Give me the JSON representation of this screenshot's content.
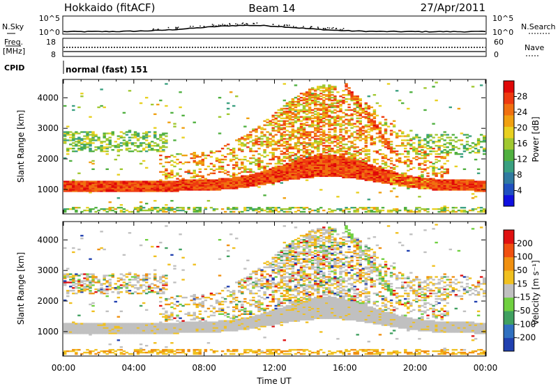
{
  "header": {
    "station": "Hokkaido (fitACF)",
    "beam": "Beam 14",
    "date": "27/Apr/2011"
  },
  "x_axis": {
    "ticks": [
      "00:00",
      "04:00",
      "08:00",
      "12:00",
      "16:00",
      "20:00",
      "00:00"
    ],
    "label": "Time UT"
  },
  "top_panels": {
    "noise": {
      "left_label": "N.Sky",
      "right_label": "N.Search",
      "left_ticks": [
        "10^5",
        "10^0"
      ],
      "right_ticks": [
        "10^5",
        "10^0"
      ]
    },
    "freq": {
      "left_label_1": "Freq.",
      "left_label_2": "[MHz]",
      "right_label": "Nave",
      "left_ticks": [
        "18",
        "8"
      ],
      "right_ticks": [
        "60",
        "0"
      ]
    },
    "cpid": {
      "label": "CPID",
      "mode_text": "normal (fast) 151"
    }
  },
  "chart_data": [
    {
      "type": "heatmap",
      "name": "power",
      "ylabel": "Slant Range [km]",
      "yticks": [
        "4000",
        "3000",
        "2000",
        "1000"
      ],
      "ylim": [
        200,
        4600
      ],
      "xlim_hours": [
        0,
        24
      ],
      "colorbar": {
        "label": "Power [dB]",
        "ticks": [
          "28",
          "24",
          "20",
          "16",
          "12",
          "8",
          "4"
        ],
        "colors": [
          "#1010e0",
          "#2050c0",
          "#307aa0",
          "#3aa080",
          "#50b040",
          "#a0c830",
          "#e8d020",
          "#f0a010",
          "#f07010",
          "#ee3a10",
          "#e00808"
        ]
      }
    },
    {
      "type": "heatmap",
      "name": "velocity",
      "ylabel": "Slant Range [km]",
      "yticks": [
        "4000",
        "3000",
        "2000",
        "1000"
      ],
      "ylim": [
        200,
        4600
      ],
      "xlim_hours": [
        0,
        24
      ],
      "colorbar": {
        "label": "Velocity [m s⁻¹]",
        "ticks": [
          "200",
          "100",
          "50",
          "15",
          "-15",
          "-50",
          "-100",
          "-200"
        ],
        "colors": [
          "#2040b0",
          "#3070c0",
          "#40a060",
          "#70d040",
          "#c0c0c0",
          "#f0c020",
          "#f09010",
          "#f05010",
          "#e01010"
        ]
      }
    }
  ]
}
